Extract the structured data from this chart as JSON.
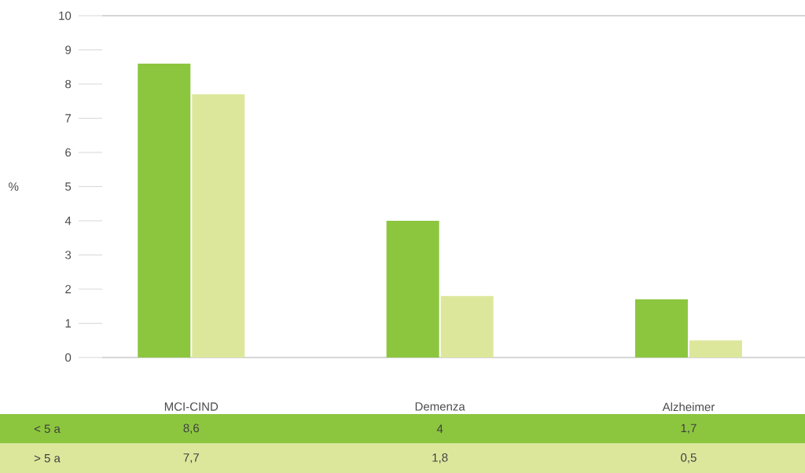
{
  "chart_data": {
    "type": "bar",
    "ylabel": "%",
    "categories": [
      "MCI-CIND",
      "Demenza",
      "Alzheimer"
    ],
    "series": [
      {
        "name": "< 5 a",
        "color": "#8cc63f",
        "values": [
          8.6,
          4,
          1.7
        ],
        "value_labels": [
          "8,6",
          "4",
          "1,7"
        ]
      },
      {
        "name": "> 5 a",
        "color": "#dde79c",
        "values": [
          7.7,
          1.8,
          0.5
        ],
        "value_labels": [
          "7,7",
          "1,8",
          "0,5"
        ]
      }
    ],
    "ylim": [
      0,
      10
    ],
    "yticks": [
      0,
      1,
      2,
      3,
      4,
      5,
      6,
      7,
      8,
      9,
      10
    ]
  }
}
